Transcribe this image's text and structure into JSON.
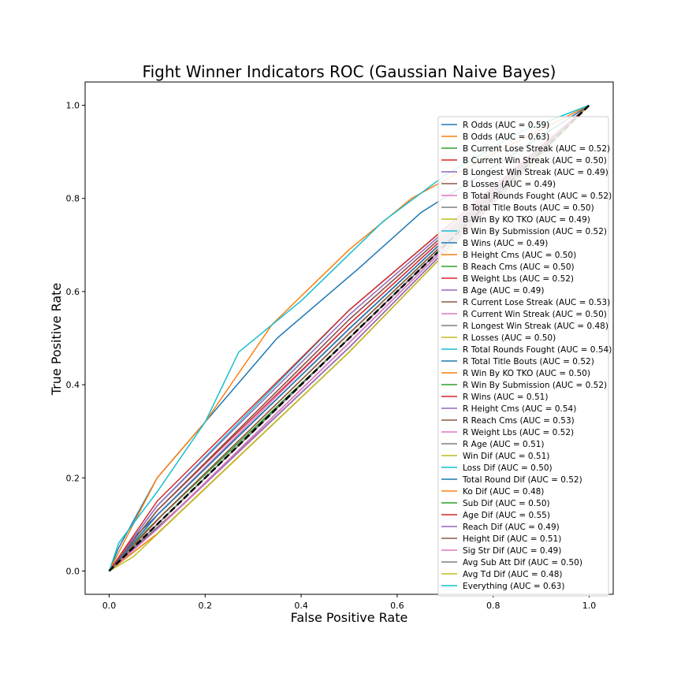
{
  "chart_data": {
    "type": "line",
    "title": "Fight Winner Indicators ROC (Gaussian Naive Bayes)",
    "xlabel": "False Positive Rate",
    "ylabel": "True Positive Rate",
    "xlim": [
      -0.05,
      1.05
    ],
    "ylim": [
      -0.05,
      1.05
    ],
    "xticks": [
      "0.0",
      "0.2",
      "0.4",
      "0.6",
      "0.8",
      "1.0"
    ],
    "yticks": [
      "0.0",
      "0.2",
      "0.4",
      "0.6",
      "0.8",
      "1.0"
    ],
    "legend_position": "right",
    "grid": false,
    "series": [
      {
        "name": "R Odds (AUC = 0.59)",
        "color": "#1f77b4",
        "points": [
          [
            0,
            0
          ],
          [
            0.02,
            0.05
          ],
          [
            0.1,
            0.2
          ],
          [
            0.2,
            0.32
          ],
          [
            0.35,
            0.5
          ],
          [
            0.52,
            0.65
          ],
          [
            0.65,
            0.77
          ],
          [
            0.85,
            0.9
          ],
          [
            1,
            1
          ]
        ]
      },
      {
        "name": "B Odds (AUC = 0.63)",
        "color": "#ff7f0e",
        "points": [
          [
            0,
            0
          ],
          [
            0.02,
            0.04
          ],
          [
            0.1,
            0.2
          ],
          [
            0.2,
            0.32
          ],
          [
            0.34,
            0.53
          ],
          [
            0.5,
            0.69
          ],
          [
            0.63,
            0.8
          ],
          [
            0.77,
            0.88
          ],
          [
            1,
            1
          ]
        ]
      },
      {
        "name": "B Current Lose Streak (AUC = 0.52)",
        "color": "#2ca02c",
        "points": [
          [
            0,
            0
          ],
          [
            0.1,
            0.12
          ],
          [
            0.5,
            0.52
          ],
          [
            1,
            1
          ]
        ]
      },
      {
        "name": "B Current Win Streak (AUC = 0.50)",
        "color": "#d62728",
        "points": [
          [
            0,
            0
          ],
          [
            0.1,
            0.1
          ],
          [
            0.5,
            0.5
          ],
          [
            1,
            1
          ]
        ]
      },
      {
        "name": "B Longest Win Streak (AUC = 0.49)",
        "color": "#9467bd",
        "points": [
          [
            0,
            0
          ],
          [
            0.1,
            0.09
          ],
          [
            0.5,
            0.48
          ],
          [
            1,
            1
          ]
        ]
      },
      {
        "name": "B Losses (AUC = 0.49)",
        "color": "#8c564b",
        "points": [
          [
            0,
            0
          ],
          [
            0.15,
            0.14
          ],
          [
            0.5,
            0.48
          ],
          [
            1,
            1
          ]
        ]
      },
      {
        "name": "B Total Rounds Fought (AUC = 0.52)",
        "color": "#e377c2",
        "points": [
          [
            0,
            0
          ],
          [
            0.1,
            0.12
          ],
          [
            0.5,
            0.53
          ],
          [
            1,
            1
          ]
        ]
      },
      {
        "name": "B Total Title Bouts (AUC = 0.50)",
        "color": "#7f7f7f",
        "points": [
          [
            0,
            0
          ],
          [
            0.05,
            0.05
          ],
          [
            0.5,
            0.5
          ],
          [
            1,
            1
          ]
        ]
      },
      {
        "name": "B Win By KO TKO (AUC = 0.49)",
        "color": "#bcbd22",
        "points": [
          [
            0,
            0
          ],
          [
            0.1,
            0.09
          ],
          [
            0.5,
            0.48
          ],
          [
            1,
            1
          ]
        ]
      },
      {
        "name": "B Win By Submission (AUC = 0.52)",
        "color": "#17becf",
        "points": [
          [
            0,
            0
          ],
          [
            0.1,
            0.12
          ],
          [
            0.5,
            0.52
          ],
          [
            1,
            1
          ]
        ]
      },
      {
        "name": "B Wins (AUC = 0.49)",
        "color": "#1f77b4",
        "points": [
          [
            0,
            0
          ],
          [
            0.12,
            0.11
          ],
          [
            0.5,
            0.49
          ],
          [
            1,
            1
          ]
        ]
      },
      {
        "name": "B Height Cms (AUC = 0.50)",
        "color": "#ff7f0e",
        "points": [
          [
            0,
            0
          ],
          [
            0.1,
            0.1
          ],
          [
            0.5,
            0.5
          ],
          [
            1,
            1
          ]
        ]
      },
      {
        "name": "B Reach Cms (AUC = 0.50)",
        "color": "#2ca02c",
        "points": [
          [
            0,
            0
          ],
          [
            0.08,
            0.09
          ],
          [
            0.5,
            0.5
          ],
          [
            1,
            1
          ]
        ]
      },
      {
        "name": "B Weight Lbs (AUC = 0.52)",
        "color": "#d62728",
        "points": [
          [
            0,
            0
          ],
          [
            0.1,
            0.13
          ],
          [
            0.5,
            0.53
          ],
          [
            1,
            1
          ]
        ]
      },
      {
        "name": "B Age (AUC = 0.49)",
        "color": "#9467bd",
        "points": [
          [
            0,
            0
          ],
          [
            0.1,
            0.09
          ],
          [
            0.5,
            0.48
          ],
          [
            1,
            1
          ]
        ]
      },
      {
        "name": "R Current Lose Streak (AUC = 0.53)",
        "color": "#8c564b",
        "points": [
          [
            0,
            0
          ],
          [
            0.1,
            0.13
          ],
          [
            0.5,
            0.54
          ],
          [
            1,
            1
          ]
        ]
      },
      {
        "name": "R Current Win Streak (AUC = 0.50)",
        "color": "#e377c2",
        "points": [
          [
            0,
            0
          ],
          [
            0.1,
            0.1
          ],
          [
            0.5,
            0.5
          ],
          [
            1,
            1
          ]
        ]
      },
      {
        "name": "R Longest Win Streak (AUC = 0.48)",
        "color": "#7f7f7f",
        "points": [
          [
            0,
            0
          ],
          [
            0.1,
            0.08
          ],
          [
            0.5,
            0.47
          ],
          [
            1,
            1
          ]
        ]
      },
      {
        "name": "R Losses (AUC = 0.50)",
        "color": "#bcbd22",
        "points": [
          [
            0,
            0
          ],
          [
            0.1,
            0.1
          ],
          [
            0.5,
            0.5
          ],
          [
            1,
            1
          ]
        ]
      },
      {
        "name": "R Total Rounds Fought (AUC = 0.54)",
        "color": "#17becf",
        "points": [
          [
            0,
            0
          ],
          [
            0.1,
            0.14
          ],
          [
            0.5,
            0.56
          ],
          [
            1,
            1
          ]
        ]
      },
      {
        "name": "R Total Title Bouts (AUC = 0.52)",
        "color": "#1f77b4",
        "points": [
          [
            0,
            0
          ],
          [
            0.05,
            0.07
          ],
          [
            0.5,
            0.52
          ],
          [
            1,
            1
          ]
        ]
      },
      {
        "name": "R Win By KO TKO (AUC = 0.50)",
        "color": "#ff7f0e",
        "points": [
          [
            0,
            0
          ],
          [
            0.1,
            0.1
          ],
          [
            0.5,
            0.5
          ],
          [
            1,
            1
          ]
        ]
      },
      {
        "name": "R Win By Submission (AUC = 0.52)",
        "color": "#2ca02c",
        "points": [
          [
            0,
            0
          ],
          [
            0.1,
            0.12
          ],
          [
            0.5,
            0.52
          ],
          [
            1,
            1
          ]
        ]
      },
      {
        "name": "R Wins (AUC = 0.51)",
        "color": "#d62728",
        "points": [
          [
            0,
            0
          ],
          [
            0.12,
            0.13
          ],
          [
            0.5,
            0.51
          ],
          [
            1,
            1
          ]
        ]
      },
      {
        "name": "R Height Cms (AUC = 0.54)",
        "color": "#9467bd",
        "points": [
          [
            0,
            0
          ],
          [
            0.1,
            0.14
          ],
          [
            0.5,
            0.55
          ],
          [
            1,
            1
          ]
        ]
      },
      {
        "name": "R Reach Cms (AUC = 0.53)",
        "color": "#8c564b",
        "points": [
          [
            0,
            0
          ],
          [
            0.1,
            0.13
          ],
          [
            0.5,
            0.54
          ],
          [
            1,
            1
          ]
        ]
      },
      {
        "name": "R Weight Lbs (AUC = 0.52)",
        "color": "#e377c2",
        "points": [
          [
            0,
            0
          ],
          [
            0.1,
            0.12
          ],
          [
            0.5,
            0.52
          ],
          [
            1,
            1
          ]
        ]
      },
      {
        "name": "R Age (AUC = 0.51)",
        "color": "#7f7f7f",
        "points": [
          [
            0,
            0
          ],
          [
            0.1,
            0.11
          ],
          [
            0.5,
            0.51
          ],
          [
            1,
            1
          ]
        ]
      },
      {
        "name": "Win Dif (AUC = 0.51)",
        "color": "#bcbd22",
        "points": [
          [
            0,
            0
          ],
          [
            0.1,
            0.11
          ],
          [
            0.5,
            0.51
          ],
          [
            1,
            1
          ]
        ]
      },
      {
        "name": "Loss Dif (AUC = 0.50)",
        "color": "#17becf",
        "points": [
          [
            0,
            0
          ],
          [
            0.1,
            0.1
          ],
          [
            0.5,
            0.5
          ],
          [
            1,
            1
          ]
        ]
      },
      {
        "name": "Total Round Dif (AUC = 0.52)",
        "color": "#1f77b4",
        "points": [
          [
            0,
            0
          ],
          [
            0.1,
            0.12
          ],
          [
            0.5,
            0.52
          ],
          [
            1,
            1
          ]
        ]
      },
      {
        "name": "Ko Dif (AUC = 0.48)",
        "color": "#ff7f0e",
        "points": [
          [
            0,
            0
          ],
          [
            0.1,
            0.08
          ],
          [
            0.5,
            0.47
          ],
          [
            1,
            1
          ]
        ]
      },
      {
        "name": "Sub Dif (AUC = 0.50)",
        "color": "#2ca02c",
        "points": [
          [
            0,
            0
          ],
          [
            0.1,
            0.1
          ],
          [
            0.5,
            0.5
          ],
          [
            1,
            1
          ]
        ]
      },
      {
        "name": "Age Dif (AUC = 0.55)",
        "color": "#d62728",
        "points": [
          [
            0,
            0
          ],
          [
            0.1,
            0.15
          ],
          [
            0.5,
            0.56
          ],
          [
            1,
            1
          ]
        ]
      },
      {
        "name": "Reach Dif (AUC = 0.49)",
        "color": "#9467bd",
        "points": [
          [
            0,
            0
          ],
          [
            0.1,
            0.09
          ],
          [
            0.5,
            0.49
          ],
          [
            1,
            1
          ]
        ]
      },
      {
        "name": "Height Dif (AUC = 0.51)",
        "color": "#8c564b",
        "points": [
          [
            0,
            0
          ],
          [
            0.1,
            0.11
          ],
          [
            0.5,
            0.51
          ],
          [
            1,
            1
          ]
        ]
      },
      {
        "name": "Sig Str Dif (AUC = 0.49)",
        "color": "#e377c2",
        "points": [
          [
            0,
            0
          ],
          [
            0.1,
            0.09
          ],
          [
            0.5,
            0.49
          ],
          [
            1,
            1
          ]
        ]
      },
      {
        "name": "Avg Sub Att Dif (AUC = 0.50)",
        "color": "#7f7f7f",
        "points": [
          [
            0,
            0
          ],
          [
            0.1,
            0.1
          ],
          [
            0.5,
            0.5
          ],
          [
            1,
            1
          ]
        ]
      },
      {
        "name": "Avg Td Dif (AUC = 0.48)",
        "color": "#bcbd22",
        "points": [
          [
            0,
            0
          ],
          [
            0.05,
            0.03
          ],
          [
            0.5,
            0.47
          ],
          [
            1,
            1
          ]
        ]
      },
      {
        "name": "Everything (AUC = 0.63)",
        "color": "#17becf",
        "points": [
          [
            0,
            0
          ],
          [
            0.02,
            0.06
          ],
          [
            0.1,
            0.17
          ],
          [
            0.2,
            0.32
          ],
          [
            0.27,
            0.47
          ],
          [
            0.4,
            0.58
          ],
          [
            0.57,
            0.75
          ],
          [
            0.7,
            0.85
          ],
          [
            0.85,
            0.94
          ],
          [
            1,
            1
          ]
        ]
      }
    ],
    "reference_line": {
      "points": [
        [
          0,
          0
        ],
        [
          1,
          1
        ]
      ],
      "color": "#000000",
      "style": "dashed"
    }
  }
}
